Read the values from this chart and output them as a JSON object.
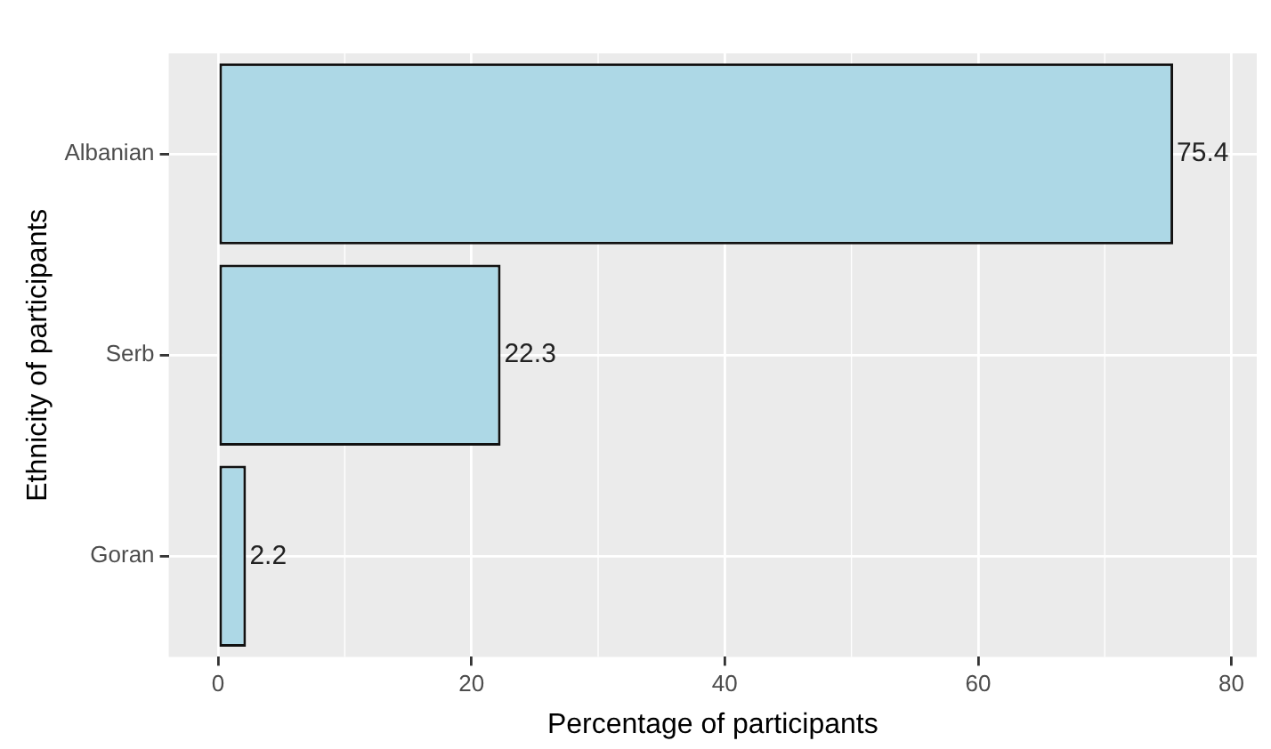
{
  "chart_data": {
    "type": "bar",
    "orientation": "horizontal",
    "categories": [
      "Albanian",
      "Serb",
      "Goran"
    ],
    "values": [
      75.4,
      22.3,
      2.2
    ],
    "color": "#add8e6",
    "xlim": [
      -3.9,
      82
    ],
    "xticks": [
      0,
      20,
      40,
      60,
      80
    ],
    "xlabel": "Percentage of participants",
    "ylabel": "Ethnicity of participants",
    "data_labels": true,
    "grid": true
  }
}
